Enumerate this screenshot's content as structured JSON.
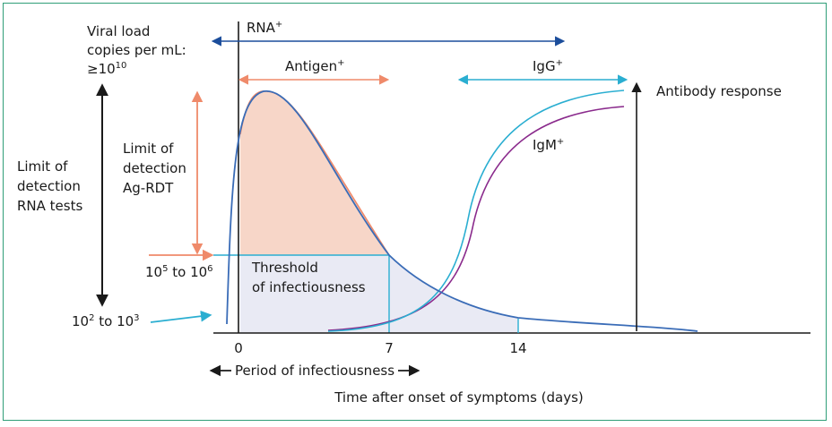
{
  "colors": {
    "frame": "#2f9e78",
    "rna": "#1b4d9b",
    "antigen": "#ef8a6a",
    "igg": "#2aaed1",
    "igm": "#8a2a8c",
    "viral_curve": "#3a6cb7",
    "antigen_fill": "#f7d6c8",
    "post_fill": "#e9eaf4",
    "axis": "#1a1a1a"
  },
  "icons": {
    "double_arrow": "double-headed-arrow",
    "up_arrow": "up-arrow",
    "pointer_arrow": "pointer-arrow"
  },
  "labels": {
    "viral_load_line1": "Viral load",
    "viral_load_line2": "copies per mL:",
    "viral_load_prefix": "≥10",
    "viral_load_exp": "10",
    "rna_tests_line1": "Limit of",
    "rna_tests_line2": "detection",
    "rna_tests_line3": "RNA tests",
    "agrdt_line1": "Limit of",
    "agrdt_line2": "detection",
    "agrdt_line3": "Ag-RDT",
    "low_base1": "10",
    "low_exp1": "2",
    "low_mid": " to 10",
    "low_exp2": "3",
    "high_base1": "10",
    "high_exp1": "5",
    "high_mid": " to 10",
    "high_exp2": "6",
    "threshold_line1": "Threshold",
    "threshold_line2": "of infectiousness",
    "rna_base": "RNA",
    "rna_sup": "+",
    "antigen_base": "Antigen",
    "antigen_sup": "+",
    "igg_base": "IgG",
    "igg_sup": "+",
    "igm_base": "IgM",
    "igm_sup": "+",
    "antibody_response": "Antibody response",
    "period": "Period of infectiousness",
    "x_axis_title": "Time after onset of symptoms (days)"
  },
  "axis": {
    "ticks": [
      "0",
      "7",
      "14"
    ]
  }
}
